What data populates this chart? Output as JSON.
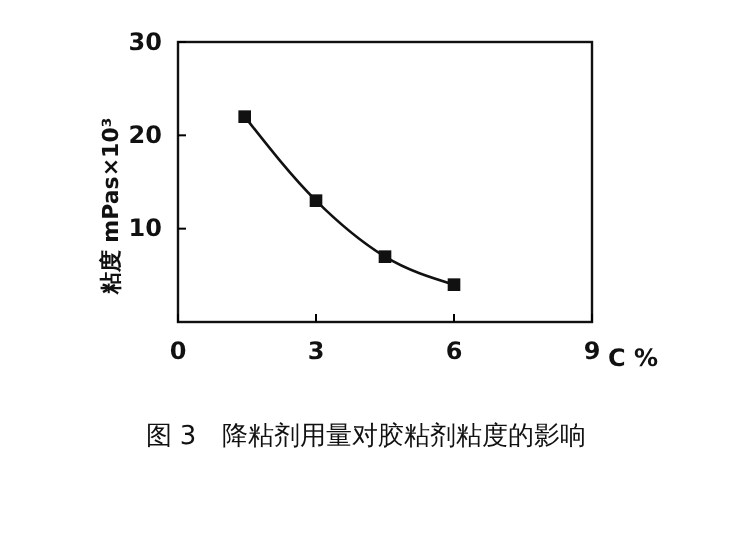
{
  "chart_data": {
    "type": "line",
    "title": "图 3　降粘剂用量对胶粘剂粘度的影响",
    "xlabel": "C %",
    "ylabel": "粘度 mPas×10³",
    "x": [
      1.45,
      3,
      4.5,
      6
    ],
    "series": [
      {
        "color": "#111111",
        "values": [
          22,
          13,
          7,
          4
        ]
      }
    ],
    "xlim": [
      0,
      9
    ],
    "ylim": [
      0,
      30
    ],
    "xticks": [
      0,
      3,
      6,
      9
    ],
    "yticks": [
      10,
      20,
      30
    ],
    "marker": "square",
    "line_style": "solid",
    "grid": false
  }
}
